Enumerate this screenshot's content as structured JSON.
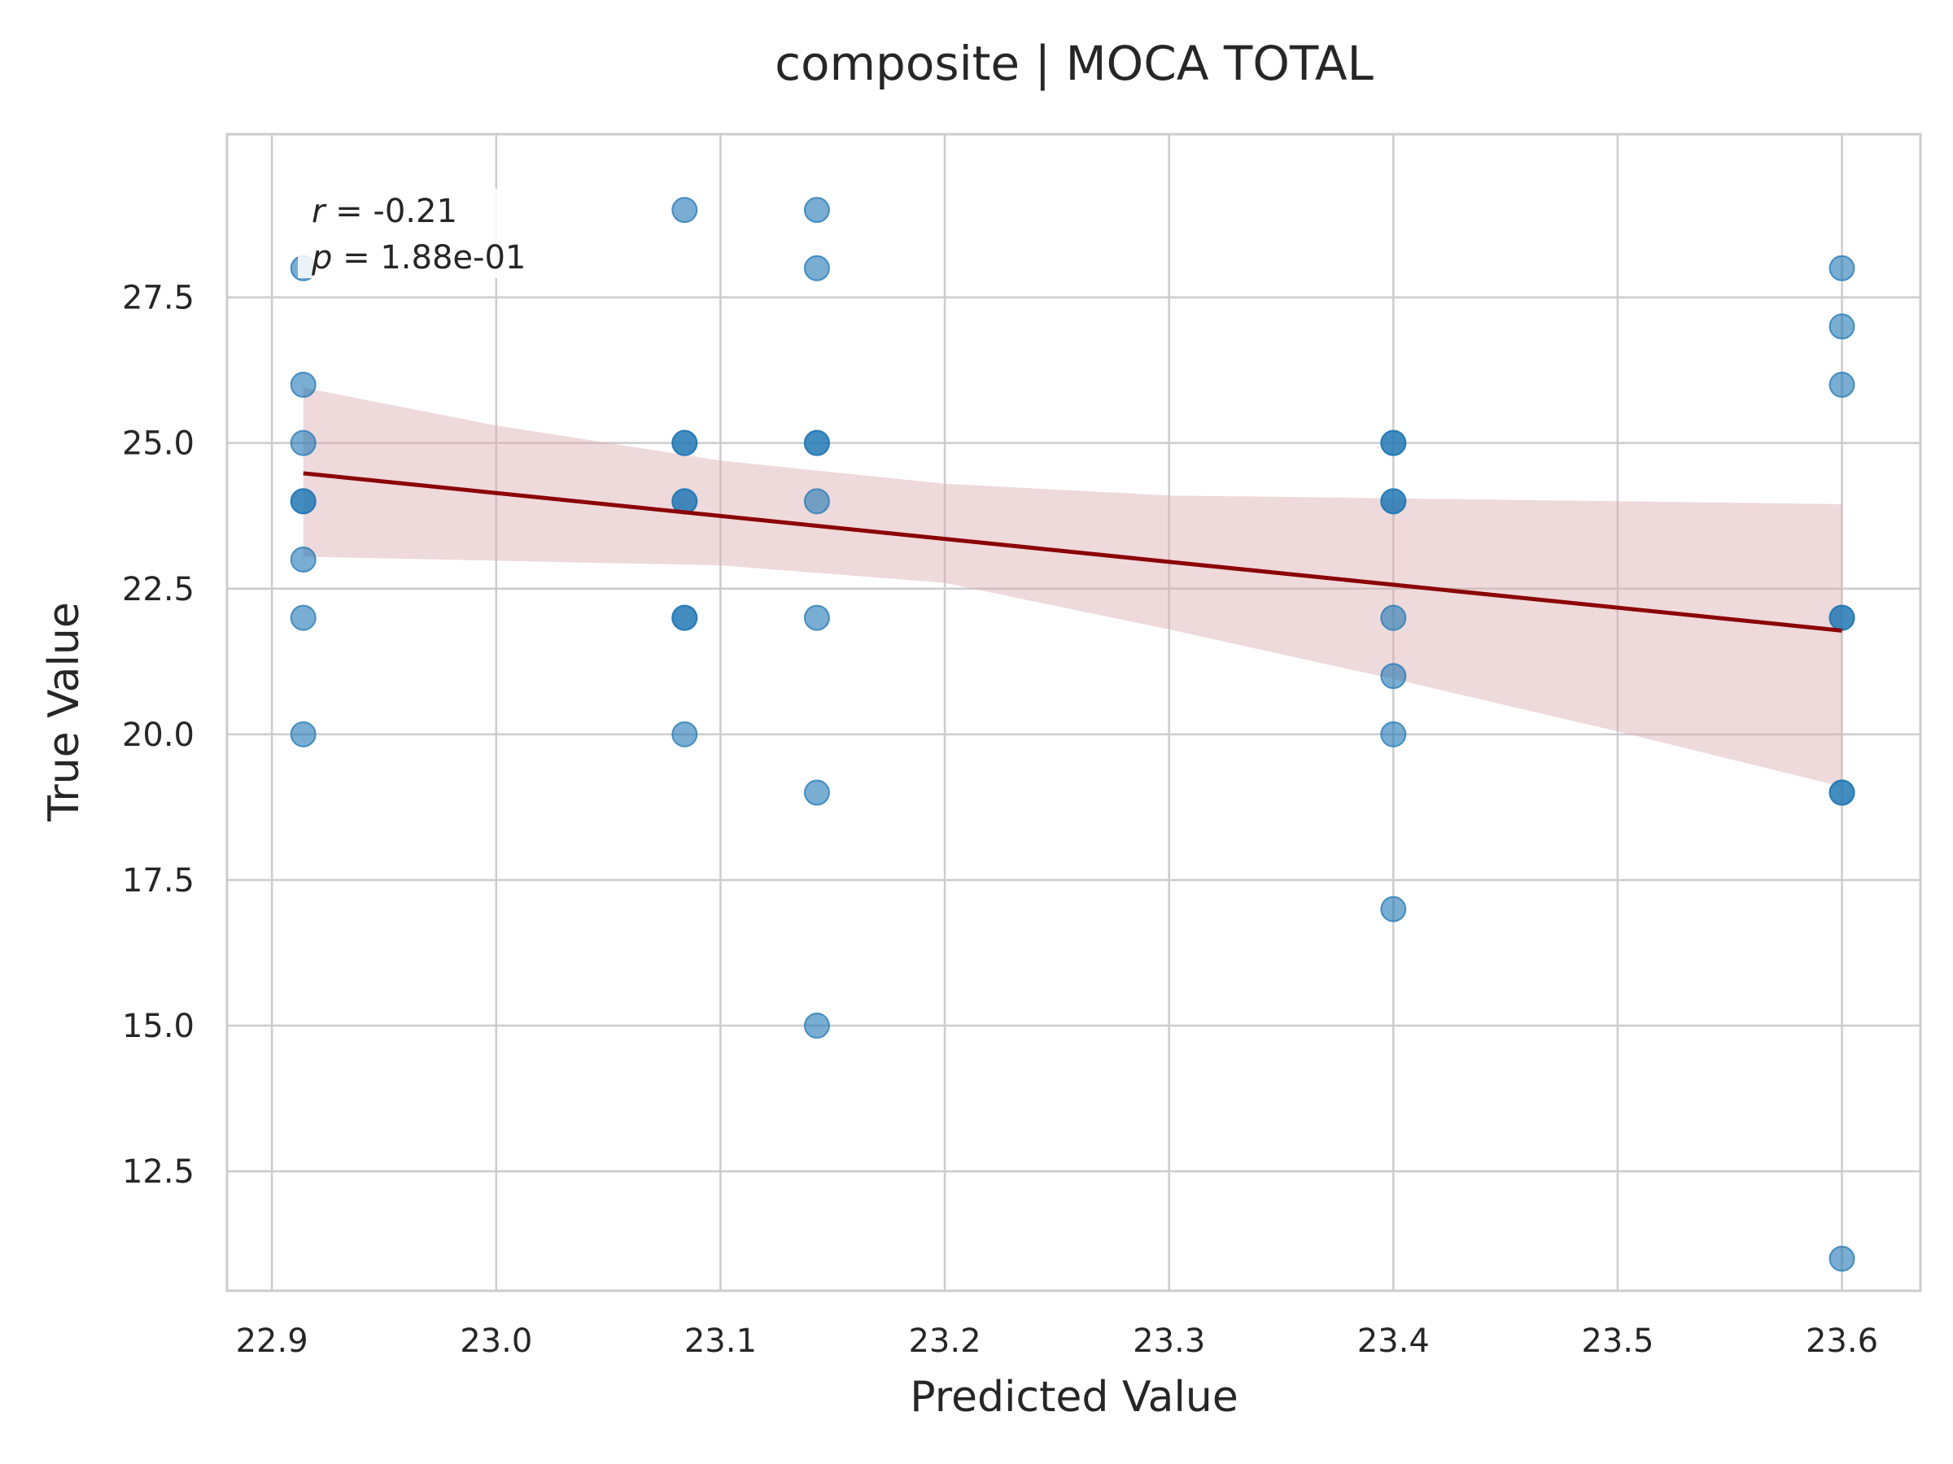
{
  "chart_data": {
    "type": "scatter",
    "title": "composite | MOCA TOTAL",
    "xlabel": "Predicted Value",
    "ylabel": "True Value",
    "xlim": [
      22.88,
      23.635
    ],
    "ylim": [
      10.45,
      30.3
    ],
    "xticks": [
      22.9,
      23.0,
      23.1,
      23.2,
      23.3,
      23.4,
      23.5,
      23.6
    ],
    "yticks": [
      12.5,
      15.0,
      17.5,
      20.0,
      22.5,
      25.0,
      27.5
    ],
    "xtick_labels": [
      "22.9",
      "23.0",
      "23.1",
      "23.2",
      "23.3",
      "23.4",
      "23.5",
      "23.6"
    ],
    "ytick_labels": [
      "12.5",
      "15.0",
      "17.5",
      "20.0",
      "22.5",
      "25.0",
      "27.5"
    ],
    "grid": true,
    "point_color": "#1f77b4",
    "line_color": "#8b0000",
    "band_color": "#d9aab0",
    "points": [
      {
        "x": 22.914,
        "y": 28
      },
      {
        "x": 22.914,
        "y": 26
      },
      {
        "x": 22.914,
        "y": 25
      },
      {
        "x": 22.914,
        "y": 24
      },
      {
        "x": 22.914,
        "y": 24
      },
      {
        "x": 22.914,
        "y": 23
      },
      {
        "x": 22.914,
        "y": 22
      },
      {
        "x": 22.914,
        "y": 20
      },
      {
        "x": 23.084,
        "y": 29
      },
      {
        "x": 23.084,
        "y": 25
      },
      {
        "x": 23.084,
        "y": 25
      },
      {
        "x": 23.084,
        "y": 24
      },
      {
        "x": 23.084,
        "y": 24
      },
      {
        "x": 23.084,
        "y": 22
      },
      {
        "x": 23.084,
        "y": 22
      },
      {
        "x": 23.084,
        "y": 20
      },
      {
        "x": 23.143,
        "y": 29
      },
      {
        "x": 23.143,
        "y": 28
      },
      {
        "x": 23.143,
        "y": 25
      },
      {
        "x": 23.143,
        "y": 25
      },
      {
        "x": 23.143,
        "y": 24
      },
      {
        "x": 23.143,
        "y": 22
      },
      {
        "x": 23.143,
        "y": 19
      },
      {
        "x": 23.143,
        "y": 15
      },
      {
        "x": 23.4,
        "y": 25
      },
      {
        "x": 23.4,
        "y": 25
      },
      {
        "x": 23.4,
        "y": 24
      },
      {
        "x": 23.4,
        "y": 24
      },
      {
        "x": 23.4,
        "y": 22
      },
      {
        "x": 23.4,
        "y": 21
      },
      {
        "x": 23.4,
        "y": 20
      },
      {
        "x": 23.4,
        "y": 17
      },
      {
        "x": 23.6,
        "y": 28
      },
      {
        "x": 23.6,
        "y": 27
      },
      {
        "x": 23.6,
        "y": 26
      },
      {
        "x": 23.6,
        "y": 22
      },
      {
        "x": 23.6,
        "y": 22
      },
      {
        "x": 23.6,
        "y": 19
      },
      {
        "x": 23.6,
        "y": 19
      },
      {
        "x": 23.6,
        "y": 11
      }
    ],
    "regression_line": {
      "x": [
        22.914,
        23.6
      ],
      "y": [
        24.48,
        21.78
      ]
    },
    "confidence_band": {
      "x": [
        22.914,
        23.0,
        23.1,
        23.2,
        23.3,
        23.4,
        23.5,
        23.6
      ],
      "upper": [
        25.95,
        25.3,
        24.7,
        24.3,
        24.1,
        24.05,
        24.0,
        23.95
      ],
      "lower": [
        23.05,
        22.98,
        22.9,
        22.6,
        21.8,
        20.95,
        20.05,
        19.1
      ]
    },
    "annotation": {
      "r_label": "r",
      "r_value": " = -0.21",
      "p_label": "p",
      "p_value": " = 1.88e-01"
    }
  }
}
